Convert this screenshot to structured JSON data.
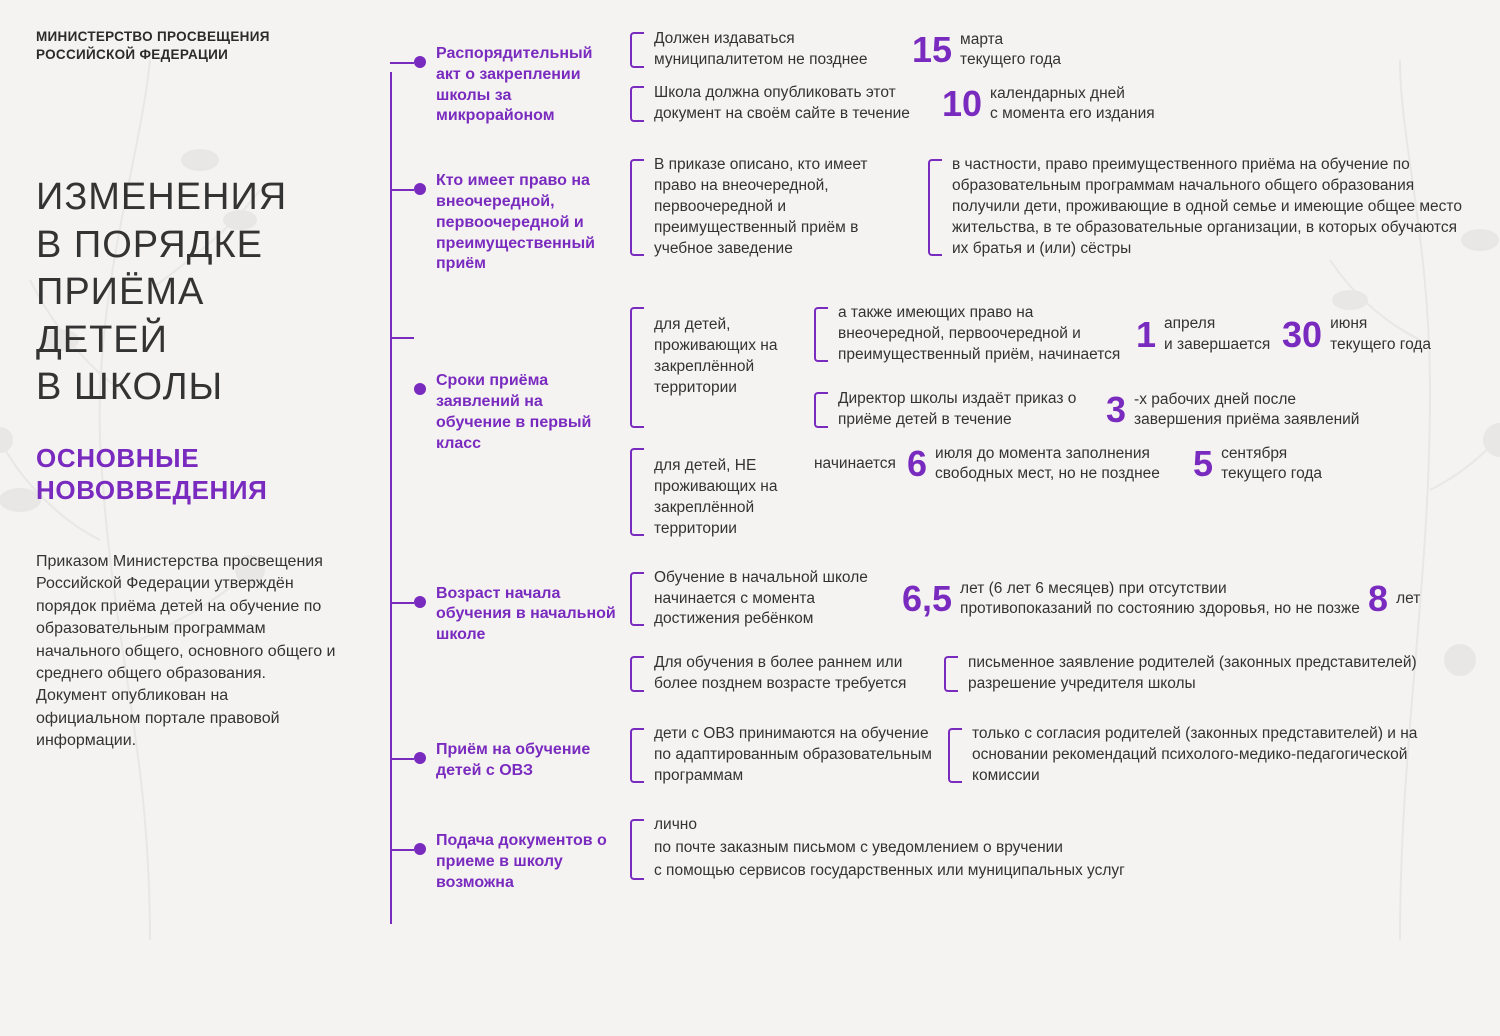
{
  "colors": {
    "accent": "#7a2bbf",
    "text": "#333333",
    "bg": "#f5f3f1"
  },
  "ministry": "МИНИСТЕРСТВО ПРОСВЕЩЕНИЯ\nРОССИЙСКОЙ ФЕДЕРАЦИИ",
  "title": "ИЗМЕНЕНИЯ\nВ ПОРЯДКЕ\nПРИЁМА\nДЕТЕЙ\nВ ШКОЛЫ",
  "subtitle": "ОСНОВНЫЕ\nНОВОВВЕДЕНИЯ",
  "intro": "Приказом Министерства просвещения Российской Федерации утверждён порядок приёма детей на обучение по образовательным программам начального общего, основного общего и среднего общего образования. Документ опубликован на официальном портале правовой информации.",
  "sections": [
    {
      "heading": "Распорядительный акт о закреплении школы за микрорайоном",
      "r1_pre": "Должен издаваться муниципалитетом не позднее",
      "r1_num": "15",
      "r1_post": "марта\nтекущего года",
      "r2_pre": "Школа должна опубликовать этот документ на своём сайте в течение",
      "r2_num": "10",
      "r2_post": "календарных дней\nс момента его издания"
    },
    {
      "heading": "Кто имеет право на  внеочередной, первоочередной и преимущественный приём",
      "left": "В приказе описано, кто имеет право на внеочередной, первоочередной и преимущественный приём в учебное заведение",
      "right": "в частности, право преимущественного приёма на обучение по образовательным программам начального общего образования получили дети, проживающие в одной семье и имеющие общее место жительства, в те образовательные организации, в которых обучаются их братья и (или) сёстры"
    },
    {
      "heading": "Сроки приёма заявлений на обучение в первый класс",
      "g1_label": "для детей, проживающих на закреплённой территории",
      "g1_r1_pre": "а также имеющих право на внеочередной, первоочередной и преимущественный приём, начинается",
      "g1_r1_n1": "1",
      "g1_r1_p1": "апреля\nи завершается",
      "g1_r1_n2": "30",
      "g1_r1_p2": "июня\nтекущего года",
      "g1_r2_pre": "Директор школы издаёт приказ о приёме детей в течение",
      "g1_r2_num": "3",
      "g1_r2_post": "-х рабочих дней после\nзавершения приёма заявлений",
      "g2_label": "для детей, НЕ проживающих на закреплённой территории",
      "g2_pre": "начинается",
      "g2_n1": "6",
      "g2_p1": "июля до момента заполнения\nсвободных мест, но не позднее",
      "g2_n2": "5",
      "g2_p2": "сентября\nтекущего года"
    },
    {
      "heading": "Возраст начала обучения в начальной школе",
      "r1_pre": "Обучение в начальной школе начинается с момента достижения ребёнком",
      "r1_n1": "6,5",
      "r1_p1": "лет (6 лет 6 месяцев) при отсутствии\nпротивопоказаний по состоянию здоровья, но не позже",
      "r1_n2": "8",
      "r1_p2": "лет",
      "r2_pre": "Для обучения в более раннем или более позднем возрасте требуется",
      "r2_post": "письменное заявление родителей (законных представителей)\nразрешение учредителя школы"
    },
    {
      "heading": "Приём на обучение детей с ОВЗ",
      "left": "дети с ОВЗ принимаются на обучение по адаптированным образовательным программам",
      "right": "только с согласия родителей (законных представителей) и на основании рекомендаций психолого-медико-педагогической комиссии"
    },
    {
      "heading": "Подача документов о приеме в школу возможна",
      "items": [
        "лично",
        "по почте заказным письмом с уведомлением о вручении",
        "с помощью сервисов государственных или муниципальных услуг"
      ]
    }
  ]
}
